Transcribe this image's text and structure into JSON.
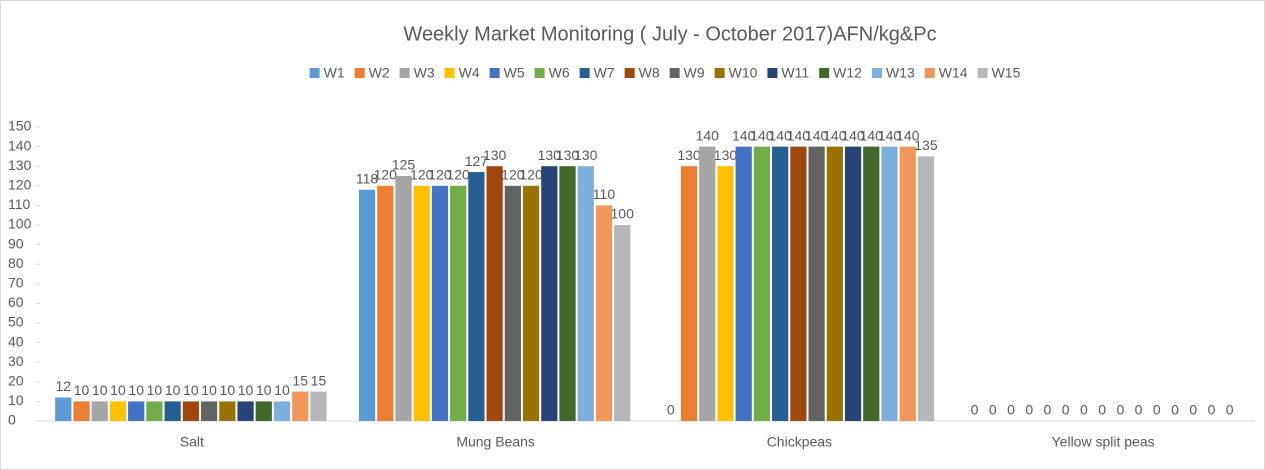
{
  "chart_data": {
    "type": "bar",
    "title": "Weekly Market Monitoring ( July - October 2017)AFN/kg&Pc",
    "categories": [
      "Salt",
      "Mung Beans",
      "Chickpeas",
      "Yellow split peas"
    ],
    "series": [
      {
        "name": "W1",
        "color": "#5b9bd5",
        "values": [
          12,
          118,
          0,
          0
        ]
      },
      {
        "name": "W2",
        "color": "#ed7d31",
        "values": [
          10,
          120,
          130,
          0
        ]
      },
      {
        "name": "W3",
        "color": "#a5a5a5",
        "values": [
          10,
          125,
          140,
          0
        ]
      },
      {
        "name": "W4",
        "color": "#ffc000",
        "values": [
          10,
          120,
          130,
          0
        ]
      },
      {
        "name": "W5",
        "color": "#4472c4",
        "values": [
          10,
          120,
          140,
          0
        ]
      },
      {
        "name": "W6",
        "color": "#70ad47",
        "values": [
          10,
          120,
          140,
          0
        ]
      },
      {
        "name": "W7",
        "color": "#255e91",
        "values": [
          10,
          127,
          140,
          0
        ]
      },
      {
        "name": "W8",
        "color": "#9e480e",
        "values": [
          10,
          130,
          140,
          0
        ]
      },
      {
        "name": "W9",
        "color": "#636363",
        "values": [
          10,
          120,
          140,
          0
        ]
      },
      {
        "name": "W10",
        "color": "#997300",
        "values": [
          10,
          120,
          140,
          0
        ]
      },
      {
        "name": "W11",
        "color": "#264478",
        "values": [
          10,
          130,
          140,
          0
        ]
      },
      {
        "name": "W12",
        "color": "#43682b",
        "values": [
          10,
          130,
          140,
          0
        ]
      },
      {
        "name": "W13",
        "color": "#7cafdd",
        "values": [
          10,
          130,
          140,
          0
        ]
      },
      {
        "name": "W14",
        "color": "#f1975a",
        "values": [
          15,
          110,
          140,
          0
        ]
      },
      {
        "name": "W15",
        "color": "#b7b7b7",
        "values": [
          15,
          100,
          135,
          0
        ]
      }
    ],
    "ylim": [
      0,
      150
    ],
    "yticks": [
      0,
      10,
      20,
      30,
      40,
      50,
      60,
      70,
      80,
      90,
      100,
      110,
      120,
      130,
      140,
      150
    ],
    "legend": "top"
  }
}
